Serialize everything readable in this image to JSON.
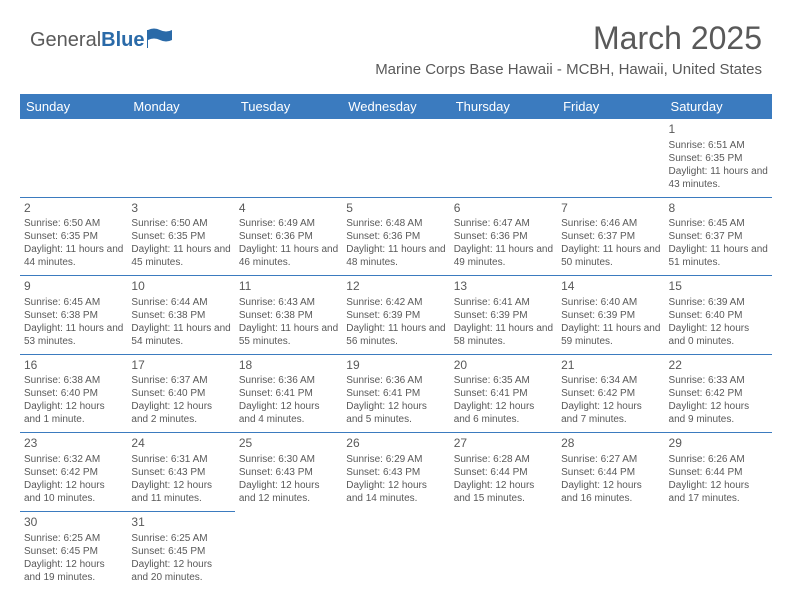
{
  "brand": {
    "part1": "General",
    "part2": "Blue"
  },
  "title": "March 2025",
  "subtitle": "Marine Corps Base Hawaii - MCBH, Hawaii, United States",
  "header_color": "#3b7bbf",
  "header_text_color": "#ffffff",
  "border_color": "#3b7bbf",
  "text_color": "#595959",
  "days": [
    "Sunday",
    "Monday",
    "Tuesday",
    "Wednesday",
    "Thursday",
    "Friday",
    "Saturday"
  ],
  "weeks": [
    [
      null,
      null,
      null,
      null,
      null,
      null,
      {
        "n": "1",
        "sr": "Sunrise: 6:51 AM",
        "ss": "Sunset: 6:35 PM",
        "dl": "Daylight: 11 hours and 43 minutes."
      }
    ],
    [
      {
        "n": "2",
        "sr": "Sunrise: 6:50 AM",
        "ss": "Sunset: 6:35 PM",
        "dl": "Daylight: 11 hours and 44 minutes."
      },
      {
        "n": "3",
        "sr": "Sunrise: 6:50 AM",
        "ss": "Sunset: 6:35 PM",
        "dl": "Daylight: 11 hours and 45 minutes."
      },
      {
        "n": "4",
        "sr": "Sunrise: 6:49 AM",
        "ss": "Sunset: 6:36 PM",
        "dl": "Daylight: 11 hours and 46 minutes."
      },
      {
        "n": "5",
        "sr": "Sunrise: 6:48 AM",
        "ss": "Sunset: 6:36 PM",
        "dl": "Daylight: 11 hours and 48 minutes."
      },
      {
        "n": "6",
        "sr": "Sunrise: 6:47 AM",
        "ss": "Sunset: 6:36 PM",
        "dl": "Daylight: 11 hours and 49 minutes."
      },
      {
        "n": "7",
        "sr": "Sunrise: 6:46 AM",
        "ss": "Sunset: 6:37 PM",
        "dl": "Daylight: 11 hours and 50 minutes."
      },
      {
        "n": "8",
        "sr": "Sunrise: 6:45 AM",
        "ss": "Sunset: 6:37 PM",
        "dl": "Daylight: 11 hours and 51 minutes."
      }
    ],
    [
      {
        "n": "9",
        "sr": "Sunrise: 6:45 AM",
        "ss": "Sunset: 6:38 PM",
        "dl": "Daylight: 11 hours and 53 minutes."
      },
      {
        "n": "10",
        "sr": "Sunrise: 6:44 AM",
        "ss": "Sunset: 6:38 PM",
        "dl": "Daylight: 11 hours and 54 minutes."
      },
      {
        "n": "11",
        "sr": "Sunrise: 6:43 AM",
        "ss": "Sunset: 6:38 PM",
        "dl": "Daylight: 11 hours and 55 minutes."
      },
      {
        "n": "12",
        "sr": "Sunrise: 6:42 AM",
        "ss": "Sunset: 6:39 PM",
        "dl": "Daylight: 11 hours and 56 minutes."
      },
      {
        "n": "13",
        "sr": "Sunrise: 6:41 AM",
        "ss": "Sunset: 6:39 PM",
        "dl": "Daylight: 11 hours and 58 minutes."
      },
      {
        "n": "14",
        "sr": "Sunrise: 6:40 AM",
        "ss": "Sunset: 6:39 PM",
        "dl": "Daylight: 11 hours and 59 minutes."
      },
      {
        "n": "15",
        "sr": "Sunrise: 6:39 AM",
        "ss": "Sunset: 6:40 PM",
        "dl": "Daylight: 12 hours and 0 minutes."
      }
    ],
    [
      {
        "n": "16",
        "sr": "Sunrise: 6:38 AM",
        "ss": "Sunset: 6:40 PM",
        "dl": "Daylight: 12 hours and 1 minute."
      },
      {
        "n": "17",
        "sr": "Sunrise: 6:37 AM",
        "ss": "Sunset: 6:40 PM",
        "dl": "Daylight: 12 hours and 2 minutes."
      },
      {
        "n": "18",
        "sr": "Sunrise: 6:36 AM",
        "ss": "Sunset: 6:41 PM",
        "dl": "Daylight: 12 hours and 4 minutes."
      },
      {
        "n": "19",
        "sr": "Sunrise: 6:36 AM",
        "ss": "Sunset: 6:41 PM",
        "dl": "Daylight: 12 hours and 5 minutes."
      },
      {
        "n": "20",
        "sr": "Sunrise: 6:35 AM",
        "ss": "Sunset: 6:41 PM",
        "dl": "Daylight: 12 hours and 6 minutes."
      },
      {
        "n": "21",
        "sr": "Sunrise: 6:34 AM",
        "ss": "Sunset: 6:42 PM",
        "dl": "Daylight: 12 hours and 7 minutes."
      },
      {
        "n": "22",
        "sr": "Sunrise: 6:33 AM",
        "ss": "Sunset: 6:42 PM",
        "dl": "Daylight: 12 hours and 9 minutes."
      }
    ],
    [
      {
        "n": "23",
        "sr": "Sunrise: 6:32 AM",
        "ss": "Sunset: 6:42 PM",
        "dl": "Daylight: 12 hours and 10 minutes."
      },
      {
        "n": "24",
        "sr": "Sunrise: 6:31 AM",
        "ss": "Sunset: 6:43 PM",
        "dl": "Daylight: 12 hours and 11 minutes."
      },
      {
        "n": "25",
        "sr": "Sunrise: 6:30 AM",
        "ss": "Sunset: 6:43 PM",
        "dl": "Daylight: 12 hours and 12 minutes."
      },
      {
        "n": "26",
        "sr": "Sunrise: 6:29 AM",
        "ss": "Sunset: 6:43 PM",
        "dl": "Daylight: 12 hours and 14 minutes."
      },
      {
        "n": "27",
        "sr": "Sunrise: 6:28 AM",
        "ss": "Sunset: 6:44 PM",
        "dl": "Daylight: 12 hours and 15 minutes."
      },
      {
        "n": "28",
        "sr": "Sunrise: 6:27 AM",
        "ss": "Sunset: 6:44 PM",
        "dl": "Daylight: 12 hours and 16 minutes."
      },
      {
        "n": "29",
        "sr": "Sunrise: 6:26 AM",
        "ss": "Sunset: 6:44 PM",
        "dl": "Daylight: 12 hours and 17 minutes."
      }
    ],
    [
      {
        "n": "30",
        "sr": "Sunrise: 6:25 AM",
        "ss": "Sunset: 6:45 PM",
        "dl": "Daylight: 12 hours and 19 minutes."
      },
      {
        "n": "31",
        "sr": "Sunrise: 6:25 AM",
        "ss": "Sunset: 6:45 PM",
        "dl": "Daylight: 12 hours and 20 minutes."
      },
      null,
      null,
      null,
      null,
      null
    ]
  ]
}
